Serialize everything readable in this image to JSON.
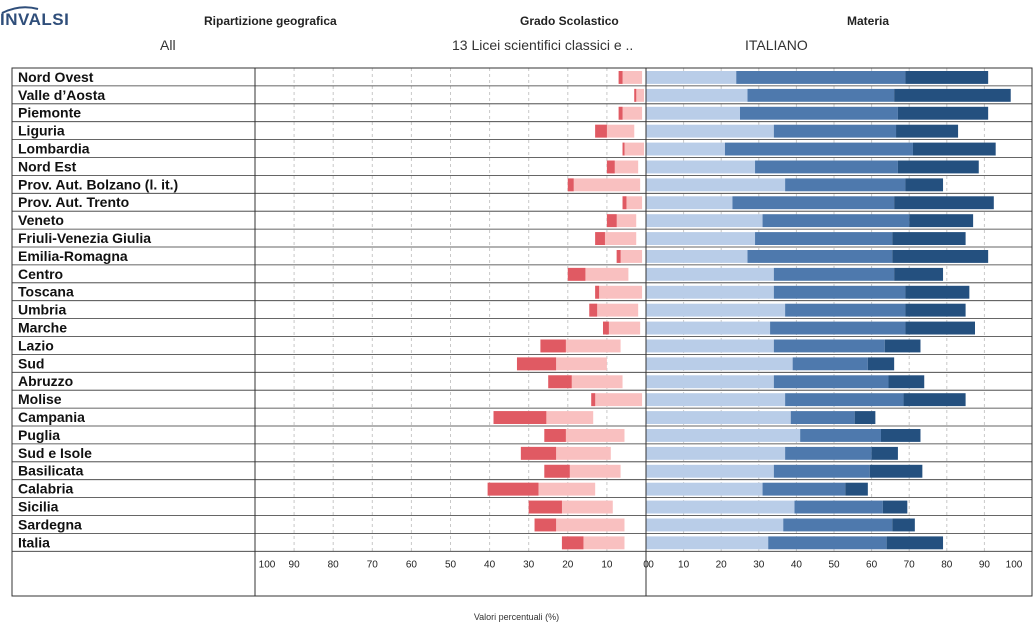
{
  "header": {
    "logo": "INVALSI",
    "filters": [
      {
        "label": "Ripartizione geografica",
        "value": "All"
      },
      {
        "label": "Grado Scolastico",
        "value": "13 Licei scientifici classici e .."
      },
      {
        "label": "Materia",
        "value": "ITALIANO"
      }
    ]
  },
  "footer": {
    "axis_note": "Valori percentuali (%)"
  },
  "colors": {
    "left_dark": "#e05a63",
    "left_light": "#f9c0c0",
    "right_light": "#b9cde8",
    "right_mid": "#4e79ad",
    "right_dark": "#24507f"
  },
  "chart_data": {
    "type": "bar",
    "orientation": "horizontal-diverging",
    "xlabel": "Valori percentuali (%)",
    "left_ticks": [
      "100",
      "90",
      "80",
      "70",
      "60",
      "50",
      "40",
      "30",
      "20",
      "10",
      "0"
    ],
    "right_ticks": [
      "0",
      "10",
      "20",
      "30",
      "40",
      "50",
      "60",
      "70",
      "80",
      "90",
      "100"
    ],
    "categories": [
      "Nord Ovest",
      "Valle d’Aosta",
      "Piemonte",
      "Liguria",
      "Lombardia",
      "Nord Est",
      "Prov. Aut. Bolzano (l. it.)",
      "Prov. Aut. Trento",
      "Veneto",
      "Friuli-Venezia Giulia",
      "Emilia-Romagna",
      "Centro",
      "Toscana",
      "Umbria",
      "Marche",
      "Lazio",
      "Sud",
      "Abruzzo",
      "Molise",
      "Campania",
      "Puglia",
      "Sud e Isole",
      "Basilicata",
      "Calabria",
      "Sicilia",
      "Sardegna",
      "Italia"
    ],
    "left_series": [
      {
        "values": [
          1.0,
          0.5,
          1.0,
          3.0,
          0.5,
          2.0,
          1.5,
          1.0,
          2.5,
          2.5,
          1.0,
          4.5,
          1.0,
          2.0,
          1.5,
          6.5,
          10.0,
          6.0,
          1.0,
          13.5,
          5.5,
          9.0,
          6.5,
          13.0,
          8.5,
          5.5,
          5.5
        ]
      },
      {
        "values": [
          7.0,
          3.0,
          7.0,
          13.0,
          6.0,
          10.0,
          20.0,
          6.0,
          10.0,
          13.0,
          7.5,
          20.0,
          13.0,
          14.5,
          11.0,
          27.0,
          33.0,
          25.0,
          14.0,
          39.0,
          26.0,
          32.0,
          26.0,
          40.5,
          30.0,
          28.5,
          21.5
        ]
      }
    ],
    "right_series": [
      {
        "values": [
          24.0,
          27.0,
          25.0,
          34.0,
          21.0,
          29.0,
          37.0,
          23.0,
          31.0,
          29.0,
          27.0,
          34.0,
          34.0,
          37.0,
          33.0,
          34.0,
          39.0,
          34.0,
          37.0,
          38.5,
          41.0,
          37.0,
          34.0,
          31.0,
          39.5,
          36.5,
          32.5
        ]
      },
      {
        "values": [
          69.0,
          66.0,
          67.0,
          66.5,
          71.0,
          67.0,
          69.0,
          66.0,
          70.0,
          65.5,
          65.5,
          66.0,
          69.0,
          69.0,
          69.0,
          63.5,
          59.0,
          64.5,
          68.5,
          55.5,
          62.5,
          60.0,
          59.5,
          53.0,
          63.0,
          65.5,
          64.0
        ]
      },
      {
        "values": [
          91.0,
          97.0,
          91.0,
          83.0,
          93.0,
          88.5,
          79.0,
          92.5,
          87.0,
          85.0,
          91.0,
          79.0,
          86.0,
          85.0,
          87.5,
          73.0,
          66.0,
          74.0,
          85.0,
          61.0,
          73.0,
          67.0,
          73.5,
          59.0,
          69.5,
          71.5,
          79.0
        ]
      }
    ],
    "grid": "dashed vertical every 10",
    "legend": "none"
  }
}
